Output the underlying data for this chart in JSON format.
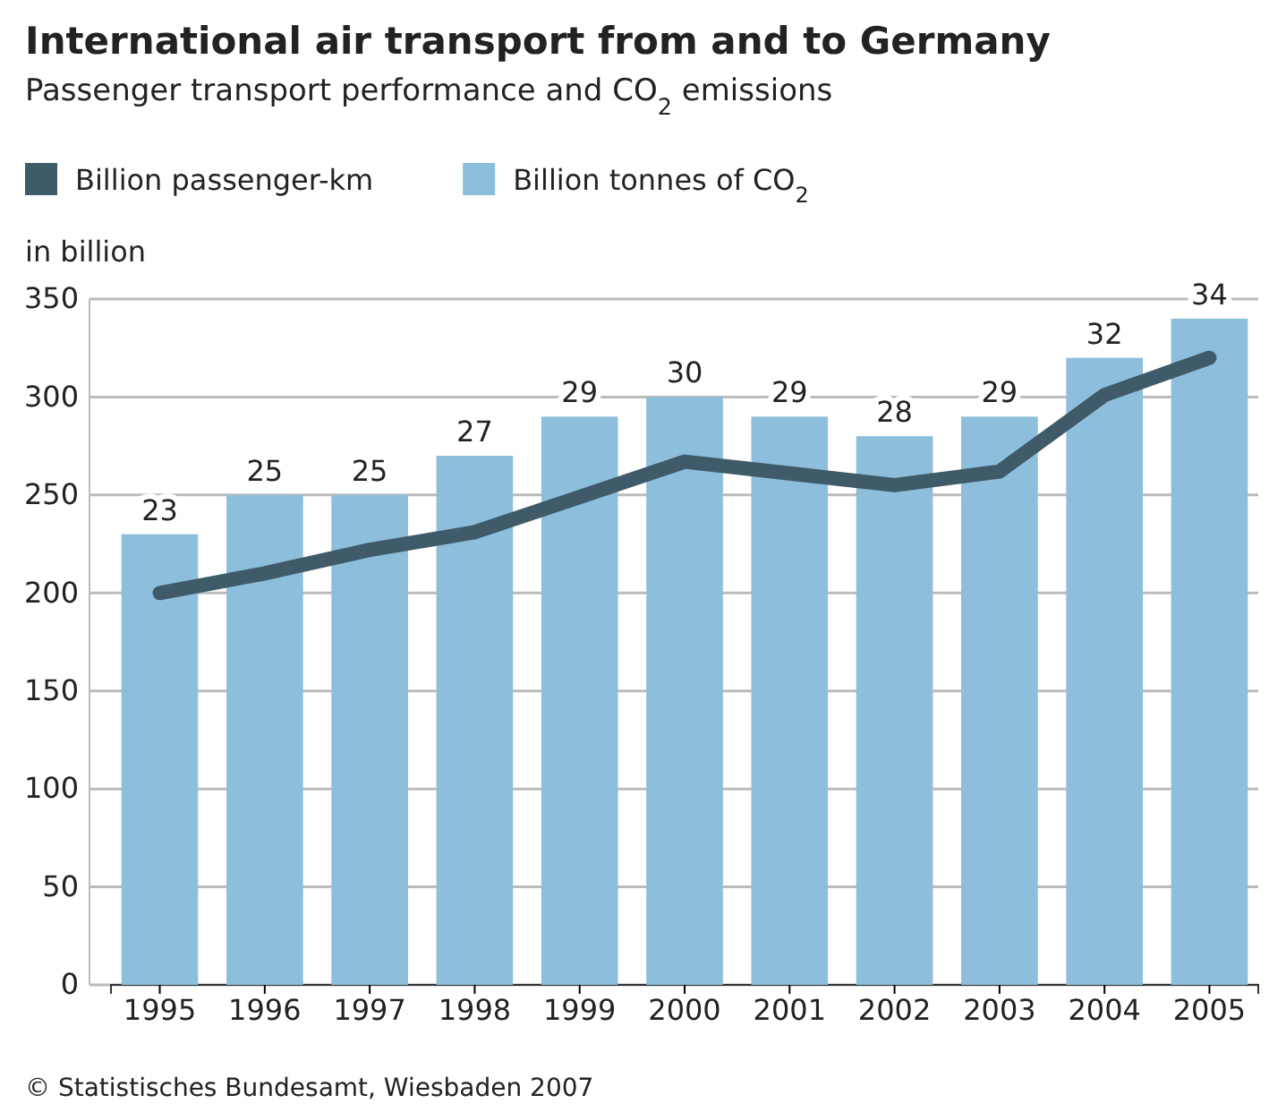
{
  "chart_data": {
    "type": "bar",
    "title": "International air transport from and to Germany",
    "subtitle": "Passenger transport performance and CO$_{2}$ emissions",
    "ylabel": "in billion",
    "categories": [
      "1995",
      "1996",
      "1997",
      "1998",
      "1999",
      "2000",
      "2001",
      "2002",
      "2003",
      "2004",
      "2005"
    ],
    "series": [
      {
        "name": "Billion passenger-km",
        "type": "line",
        "color": "#3f5a68",
        "values": [
          200,
          210,
          222,
          231,
          249,
          267,
          261,
          255,
          262,
          301,
          320
        ]
      },
      {
        "name": "Billion tonnes of CO$_{2}$",
        "axis": "y2",
        "color": "#8dbedb",
        "values": [
          23,
          25,
          25,
          27,
          29,
          30,
          29,
          28,
          29,
          32,
          34
        ],
        "value_labels": [
          "23",
          "25",
          "25",
          "27",
          "29",
          "30",
          "29",
          "28",
          "29",
          "32",
          "34"
        ]
      }
    ],
    "ylim": [
      0,
      350
    ],
    "yticks": [
      0,
      50,
      100,
      150,
      200,
      250,
      300,
      350
    ],
    "y2lim": [
      0,
      35
    ],
    "grid": "y",
    "legend": "top",
    "annotations": [
      "© Statistisches Bundesamt, Wiesbaden 2007"
    ]
  }
}
